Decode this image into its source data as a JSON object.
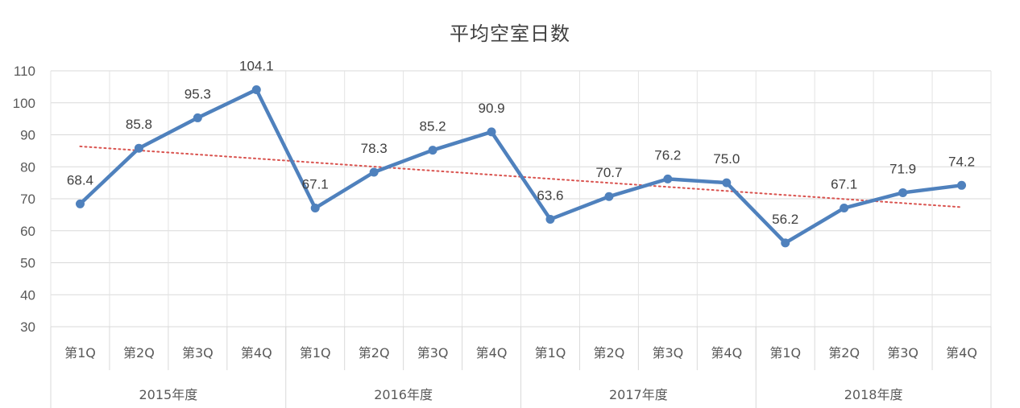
{
  "chart_data": {
    "type": "line",
    "title": "平均空室日数",
    "categories": [
      "第1Q",
      "第2Q",
      "第3Q",
      "第4Q",
      "第1Q",
      "第2Q",
      "第3Q",
      "第4Q",
      "第1Q",
      "第2Q",
      "第3Q",
      "第4Q",
      "第1Q",
      "第2Q",
      "第3Q",
      "第4Q"
    ],
    "groups": [
      {
        "label": "2015年度",
        "span": 4
      },
      {
        "label": "2016年度",
        "span": 4
      },
      {
        "label": "2017年度",
        "span": 4
      },
      {
        "label": "2018年度",
        "span": 4
      }
    ],
    "series": [
      {
        "values": [
          68.4,
          85.8,
          95.3,
          104.1,
          67.1,
          78.3,
          85.2,
          90.9,
          63.6,
          70.7,
          76.2,
          75.0,
          56.2,
          67.1,
          71.9,
          74.2
        ],
        "labels": [
          "68.4",
          "85.8",
          "95.3",
          "104.1",
          "67.1",
          "78.3",
          "85.2",
          "90.9",
          "63.6",
          "70.7",
          "76.2",
          "75.0",
          "56.2",
          "67.1",
          "71.9",
          "74.2"
        ],
        "color": "#4f81bd"
      }
    ],
    "trendline": {
      "type": "linear",
      "color": "#d9534f",
      "style": "dotted"
    },
    "ylim": [
      30,
      110
    ],
    "yticks": [
      "30",
      "40",
      "50",
      "60",
      "70",
      "80",
      "90",
      "100",
      "110"
    ],
    "xlabel": "",
    "ylabel": "",
    "grid": true,
    "legend": "none"
  }
}
